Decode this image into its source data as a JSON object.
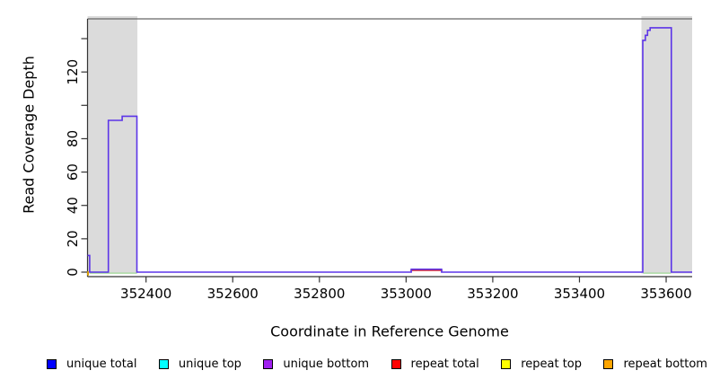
{
  "figure": {
    "background": "#ffffff"
  },
  "chart_data": {
    "type": "line",
    "step": true,
    "title": "",
    "xlabel": "Coordinate in Reference Genome",
    "ylabel": "Read Coverage Depth",
    "xlim": [
      352265,
      353660
    ],
    "ylim": [
      0,
      147
    ],
    "grid": false,
    "legend_position": "bottom",
    "axis_color": "#333333",
    "text_color": "#000000",
    "region_fill": "#dbdbdb",
    "x_ticks": [
      {
        "value": 352400,
        "label": "352400"
      },
      {
        "value": 352600,
        "label": "352600"
      },
      {
        "value": 352800,
        "label": "352800"
      },
      {
        "value": 353000,
        "label": "353000"
      },
      {
        "value": 353200,
        "label": "353200"
      },
      {
        "value": 353400,
        "label": "353400"
      },
      {
        "value": 353600,
        "label": "353600"
      }
    ],
    "y_ticks": [
      {
        "value": 0,
        "label": "0"
      },
      {
        "value": 20,
        "label": "20"
      },
      {
        "value": 40,
        "label": "40"
      },
      {
        "value": 60,
        "label": "60"
      },
      {
        "value": 80,
        "label": "80"
      },
      {
        "value": 100,
        "label": ""
      },
      {
        "value": 120,
        "label": "120"
      },
      {
        "value": 140,
        "label": ""
      }
    ],
    "repeat_regions": [
      {
        "start": 352265,
        "end": 352380
      },
      {
        "start": 353543,
        "end": 353660
      }
    ],
    "series": [
      {
        "name": "repeat-total-line",
        "color": "#e02020",
        "width": 1.4,
        "segments": [
          [
            [
              353010,
              1.0
            ],
            [
              353084,
              1.0
            ]
          ]
        ]
      },
      {
        "name": "top-strand-overlap-line",
        "color": "#9ed793",
        "width": 1.3,
        "segments": [
          [
            [
              352270,
              -0.6
            ],
            [
              352379,
              -0.6
            ]
          ],
          [
            [
              353547,
              -0.6
            ],
            [
              353611,
              -0.6
            ]
          ]
        ]
      },
      {
        "name": "repeat-bottom-edge-mark",
        "color": "#d89c00",
        "width": 2,
        "segments": [
          [
            [
              352266,
              0.5
            ],
            [
              352266,
              -2.0
            ]
          ]
        ]
      },
      {
        "name": "unique-coverage-line",
        "color": "#5c35e8",
        "width": 1.6,
        "segments": [
          [
            [
              352265,
              10
            ],
            [
              352270,
              10
            ],
            [
              352270,
              0
            ],
            [
              352313,
              0
            ],
            [
              352313,
              91
            ],
            [
              352345,
              91
            ],
            [
              352345,
              93.5
            ],
            [
              352379,
              93.5
            ],
            [
              352379,
              0
            ],
            [
              353012,
              0
            ],
            [
              353012,
              1.7
            ],
            [
              353082,
              1.7
            ],
            [
              353082,
              0
            ],
            [
              353546,
              0
            ],
            [
              353546,
              139
            ],
            [
              353552,
              139
            ],
            [
              353552,
              142
            ],
            [
              353557,
              142
            ],
            [
              353557,
              145
            ],
            [
              353563,
              145
            ],
            [
              353563,
              146.5
            ],
            [
              353612,
              146.5
            ],
            [
              353612,
              0
            ],
            [
              353660,
              0
            ]
          ]
        ]
      }
    ]
  },
  "legend": {
    "items": [
      {
        "label": "unique total",
        "color": "#0000ff"
      },
      {
        "label": "unique top",
        "color": "#00ffff"
      },
      {
        "label": "unique bottom",
        "color": "#a020f0"
      },
      {
        "label": "repeat total",
        "color": "#ff0000"
      },
      {
        "label": "repeat top",
        "color": "#ffff00"
      },
      {
        "label": "repeat bottom",
        "color": "#ffa500"
      }
    ]
  }
}
